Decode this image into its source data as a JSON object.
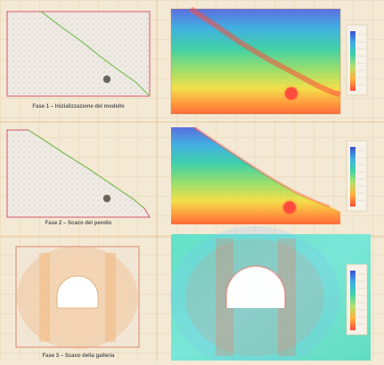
{
  "figure": {
    "captions": {
      "phase1": "Fase 1 – Inizializzazione del modello",
      "phase2": "Fase 2 – Scavo del pendio",
      "phase3": "Fase 3 – Scavo della galleria"
    },
    "colors": {
      "background": "#f3e9d4",
      "grid": "#e9c99a",
      "mesh_bg": "#efeae4",
      "slope_line": "#7fc05a",
      "model_border": "#d6576b",
      "tunnel_fill": "#6a665c",
      "contour_high": "#ff5a3c",
      "contour_low": "#5a6fe0"
    },
    "icons": [
      "tunnel-icon",
      "legend-color-scale-icon"
    ]
  }
}
